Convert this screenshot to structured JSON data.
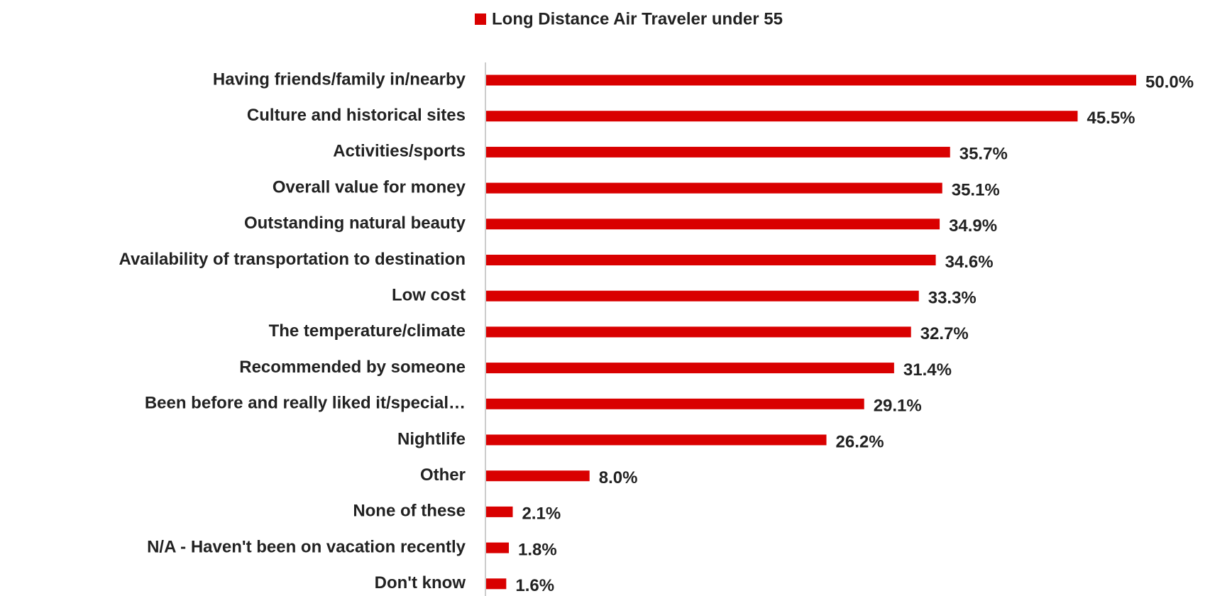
{
  "chart_data": {
    "type": "bar",
    "orientation": "horizontal",
    "categories": [
      "Having friends/family in/nearby",
      "Culture and historical sites",
      "Activities/sports",
      "Overall value for money",
      "Outstanding natural beauty",
      "Availability of transportation to  destination",
      "Low cost",
      "The temperature/climate",
      "Recommended by someone",
      "Been before and really liked it/special…",
      "Nightlife",
      "Other",
      "None of these",
      "N/A - Haven't been on vacation recently",
      "Don't know"
    ],
    "series": [
      {
        "name": "Long Distance Air Traveler under 55",
        "color": "#d90000",
        "values": [
          50.0,
          45.5,
          35.7,
          35.1,
          34.9,
          34.6,
          33.3,
          32.7,
          31.4,
          29.1,
          26.2,
          8.0,
          2.1,
          1.8,
          1.6
        ],
        "value_labels": [
          "50.0%",
          "45.5%",
          "35.7%",
          "35.1%",
          "34.9%",
          "34.6%",
          "33.3%",
          "32.7%",
          "31.4%",
          "29.1%",
          "26.2%",
          "8.0%",
          "2.1%",
          "1.8%",
          "1.6%"
        ]
      }
    ],
    "legend": "top"
  }
}
